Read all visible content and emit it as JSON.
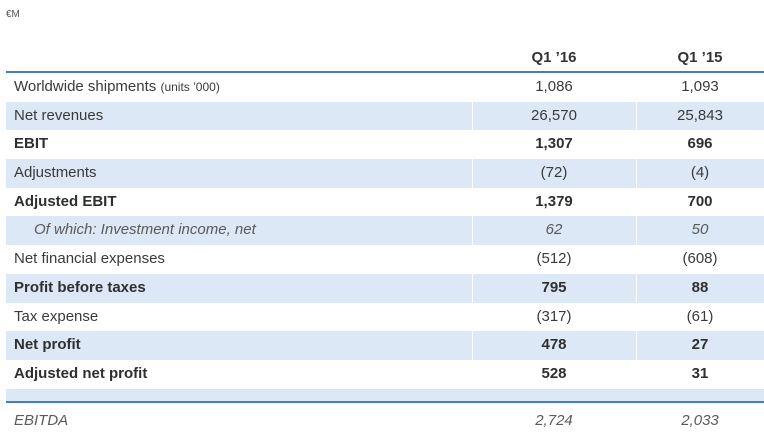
{
  "unit_label": "€M",
  "columns": [
    "Q1 ’16",
    "Q1 ’15"
  ],
  "rows": [
    {
      "label": "Worldwide shipments",
      "suffix": "(units ’000)",
      "q1_16": "1,086",
      "q1_15": "1,093",
      "style": "normal",
      "shaded": false
    },
    {
      "label": "Net revenues",
      "suffix": "",
      "q1_16": "26,570",
      "q1_15": "25,843",
      "style": "normal",
      "shaded": true
    },
    {
      "label": "EBIT",
      "suffix": "",
      "q1_16": "1,307",
      "q1_15": "696",
      "style": "bold",
      "shaded": false
    },
    {
      "label": "Adjustments",
      "suffix": "",
      "q1_16": "(72)",
      "q1_15": "(4)",
      "style": "normal",
      "shaded": true
    },
    {
      "label": "Adjusted EBIT",
      "suffix": "",
      "q1_16": "1,379",
      "q1_15": "700",
      "style": "bold",
      "shaded": false
    },
    {
      "label": "Of which: Investment income, net",
      "suffix": "",
      "q1_16": "62",
      "q1_15": "50",
      "style": "italic",
      "shaded": true
    },
    {
      "label": "Net financial expenses",
      "suffix": "",
      "q1_16": "(512)",
      "q1_15": "(608)",
      "style": "normal",
      "shaded": false
    },
    {
      "label": "Profit before taxes",
      "suffix": "",
      "q1_16": "795",
      "q1_15": "88",
      "style": "bold",
      "shaded": true
    },
    {
      "label": "Tax expense",
      "suffix": "",
      "q1_16": "(317)",
      "q1_15": "(61)",
      "style": "normal",
      "shaded": false
    },
    {
      "label": "Net profit",
      "suffix": "",
      "q1_16": "478",
      "q1_15": "27",
      "style": "bold",
      "shaded": true
    },
    {
      "label": "Adjusted net profit",
      "suffix": "",
      "q1_16": "528",
      "q1_15": "31",
      "style": "bold",
      "shaded": false
    }
  ],
  "ebitda": {
    "label": "EBITDA",
    "q1_16": "2,724",
    "q1_15": "2,033"
  },
  "colors": {
    "accent": "#3f7fc1",
    "shade": "#dce8f6"
  }
}
